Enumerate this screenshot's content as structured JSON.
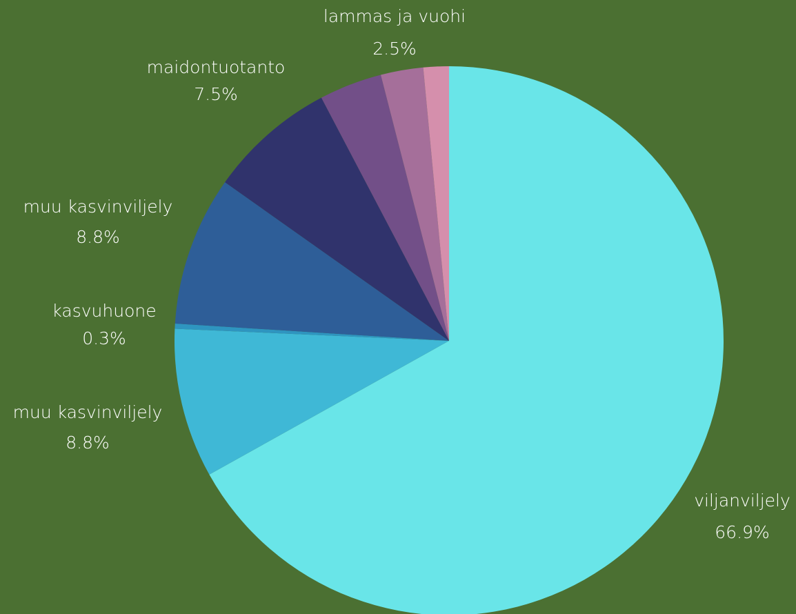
{
  "background": "#4b7032",
  "chart_data": {
    "type": "pie",
    "start_angle_deg": 0,
    "direction": "clockwise",
    "slices": [
      {
        "label": "viljanviljely",
        "value": 66.9,
        "percent_label": "66.9%",
        "color": "#69e5e8"
      },
      {
        "label": "muu kasvinviljely",
        "value": 8.8,
        "percent_label": "8.8%",
        "color": "#3fb8d6"
      },
      {
        "label": "kasvuhuone",
        "value": 0.3,
        "percent_label": "0.3%",
        "color": "#2e95c0"
      },
      {
        "label": "muu kasvinviljely",
        "value": 8.8,
        "percent_label": "8.8%",
        "color": "#2e5e98"
      },
      {
        "label": "maidontuotanto",
        "value": 7.5,
        "percent_label": "7.5%",
        "color": "#30336c"
      },
      {
        "label": "",
        "value": 3.7,
        "percent_label": "",
        "color": "#724f88"
      },
      {
        "label": "lammas ja vuohi",
        "value": 2.5,
        "percent_label": "2.5%",
        "color": "#a56f9a"
      },
      {
        "label": "",
        "value": 1.5,
        "percent_label": "",
        "color": "#d58fac"
      }
    ]
  }
}
